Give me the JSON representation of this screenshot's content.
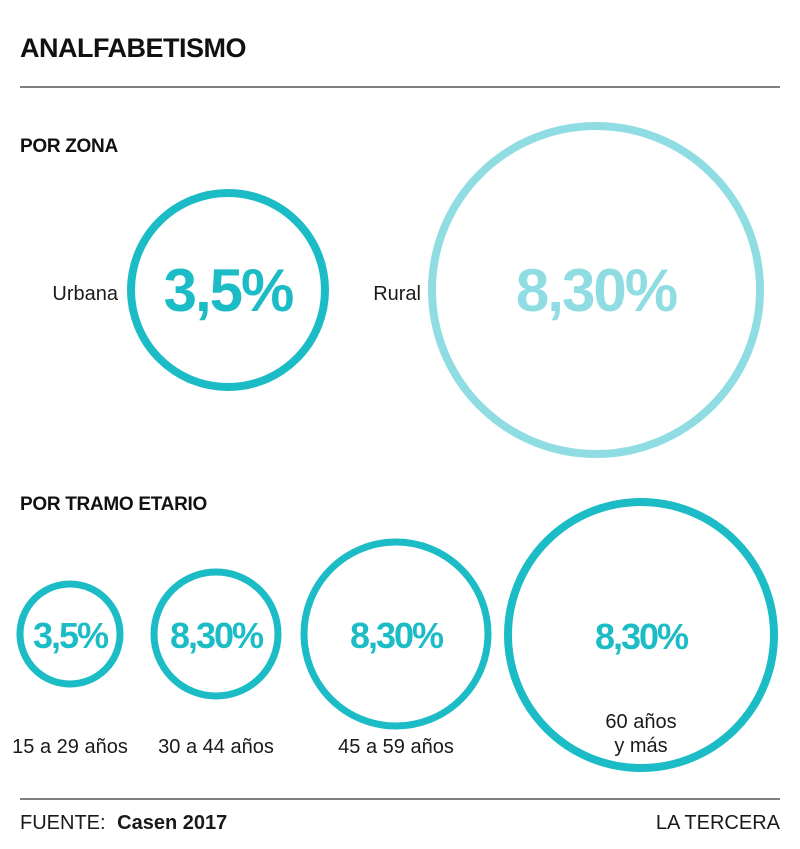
{
  "title": "ANALFABETISMO",
  "colors": {
    "primary": "#1cbcc6",
    "light": "#8fdde3",
    "text": "#1a1a1a"
  },
  "chart_data": [
    {
      "type": "bubble",
      "section_title": "POR ZONA",
      "categories": [
        "Urbana",
        "Rural"
      ],
      "values": [
        3.5,
        8.3
      ],
      "value_labels": [
        "3,5%",
        "8,30%"
      ]
    },
    {
      "type": "bubble",
      "section_title": "POR TRAMO ETARIO",
      "categories": [
        "15 a 29 años",
        "30 a 44 años",
        "45 a 59 años",
        "60 años y más"
      ],
      "value_labels": [
        "3,5%",
        "8,30%",
        "8,30%",
        "8,30%"
      ]
    }
  ],
  "footer": {
    "source_label": "FUENTE:",
    "source_value": "Casen 2017",
    "brand": "LA TERCERA"
  }
}
